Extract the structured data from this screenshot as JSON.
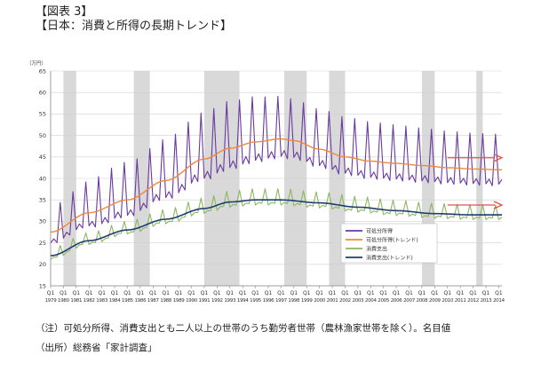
{
  "header": {
    "figure_label": "【図表 3】",
    "title": "【日本：消費と所得の長期トレンド】"
  },
  "notes": {
    "note": "（注）可処分所得、消費支出とも二人以上の世帯のうち勤労者世帯（農林漁家世帯を除く）。名目値",
    "source": "（出所）総務省「家計調査」"
  },
  "colors": {
    "income": "#6a3aa0",
    "income_trend": "#f0883a",
    "consumption": "#8ab860",
    "consumption_trend": "#1f3f6e",
    "arrow": "#e8504a",
    "shade": "#d9d9d9",
    "grid": "#d0d0d0"
  },
  "chart_data": {
    "type": "line",
    "ylabel": "（万円）",
    "ylim": [
      15,
      65
    ],
    "y_ticks": [
      15,
      20,
      25,
      30,
      35,
      40,
      45,
      50,
      55,
      60,
      65
    ],
    "x_years": [
      "1979",
      "1980",
      "1981",
      "1982",
      "1983",
      "1984",
      "1985",
      "1986",
      "1987",
      "1988",
      "1989",
      "1990",
      "1991",
      "1992",
      "1993",
      "1994",
      "1995",
      "1996",
      "1997",
      "1998",
      "1999",
      "2000",
      "2001",
      "2002",
      "2003",
      "2004",
      "2005",
      "2006",
      "2007",
      "2008",
      "2009",
      "2010",
      "2011",
      "2012",
      "2013",
      "2014"
    ],
    "x_quarter_label": "Q1",
    "recession_shading": [
      {
        "start": 1980.0,
        "end": 1981.0
      },
      {
        "start": 1985.5,
        "end": 1986.75
      },
      {
        "start": 1991.0,
        "end": 1993.75
      },
      {
        "start": 1997.25,
        "end": 1999.0
      },
      {
        "start": 2000.75,
        "end": 2002.0
      },
      {
        "start": 2008.0,
        "end": 2009.0
      },
      {
        "start": 2012.25,
        "end": 2012.75
      }
    ],
    "legend": {
      "position": "center-right",
      "entries": [
        {
          "name": "可処分所得",
          "series": "income"
        },
        {
          "name": "可処分所得(トレンド)",
          "series": "income_trend"
        },
        {
          "name": "消費支出",
          "series": "consumption"
        },
        {
          "name": "消費支出(トレンド)",
          "series": "consumption_trend"
        }
      ]
    },
    "series": [
      {
        "name": "可処分所得",
        "key": "income",
        "trend_anchors": [
          [
            1979.0,
            27.5
          ],
          [
            1982.0,
            32.0
          ],
          [
            1985.0,
            35.0
          ],
          [
            1988.0,
            39.5
          ],
          [
            1991.0,
            44.5
          ],
          [
            1993.0,
            47.0
          ],
          [
            1995.0,
            48.5
          ],
          [
            1997.0,
            49.2
          ],
          [
            1998.0,
            48.8
          ],
          [
            2000.0,
            46.8
          ],
          [
            2002.0,
            45.0
          ],
          [
            2004.0,
            44.0
          ],
          [
            2006.0,
            43.5
          ],
          [
            2008.0,
            43.0
          ],
          [
            2010.0,
            42.5
          ],
          [
            2012.0,
            42.2
          ],
          [
            2014.25,
            42.0
          ]
        ],
        "seasonal": [
          -4.5,
          -3.0,
          -5.0,
          11.0
        ],
        "seasonal_growth": [
          [
            1979.0,
            0.55
          ],
          [
            1985.0,
            0.8
          ],
          [
            1992.0,
            1.0
          ],
          [
            2000.0,
            0.85
          ],
          [
            2014.25,
            0.75
          ]
        ]
      },
      {
        "name": "可処分所得(トレンド)",
        "key": "income_trend"
      },
      {
        "name": "消費支出",
        "key": "consumption",
        "trend_anchors": [
          [
            1979.0,
            22.0
          ],
          [
            1982.0,
            25.5
          ],
          [
            1985.0,
            28.0
          ],
          [
            1988.0,
            30.5
          ],
          [
            1991.0,
            33.0
          ],
          [
            1993.0,
            34.5
          ],
          [
            1995.0,
            35.0
          ],
          [
            1997.0,
            35.0
          ],
          [
            2000.0,
            34.3
          ],
          [
            2003.0,
            33.3
          ],
          [
            2006.0,
            32.5
          ],
          [
            2009.0,
            31.8
          ],
          [
            2012.0,
            31.5
          ],
          [
            2014.25,
            31.5
          ]
        ],
        "seasonal": [
          -1.2,
          -0.6,
          -0.8,
          2.6
        ],
        "seasonal_growth": [
          [
            1979.0,
            0.7
          ],
          [
            1995.0,
            1.0
          ],
          [
            2014.25,
            0.9
          ]
        ]
      },
      {
        "name": "消費支出(トレンド)",
        "key": "consumption_trend"
      }
    ],
    "annotations": [
      {
        "type": "arrow",
        "series": "income_trend",
        "x_start": 2010.0,
        "x_end": 2014.25,
        "y": 44.8
      },
      {
        "type": "arrow",
        "series": "consumption_trend",
        "x_start": 2010.0,
        "x_end": 2014.25,
        "y": 33.8
      }
    ]
  }
}
